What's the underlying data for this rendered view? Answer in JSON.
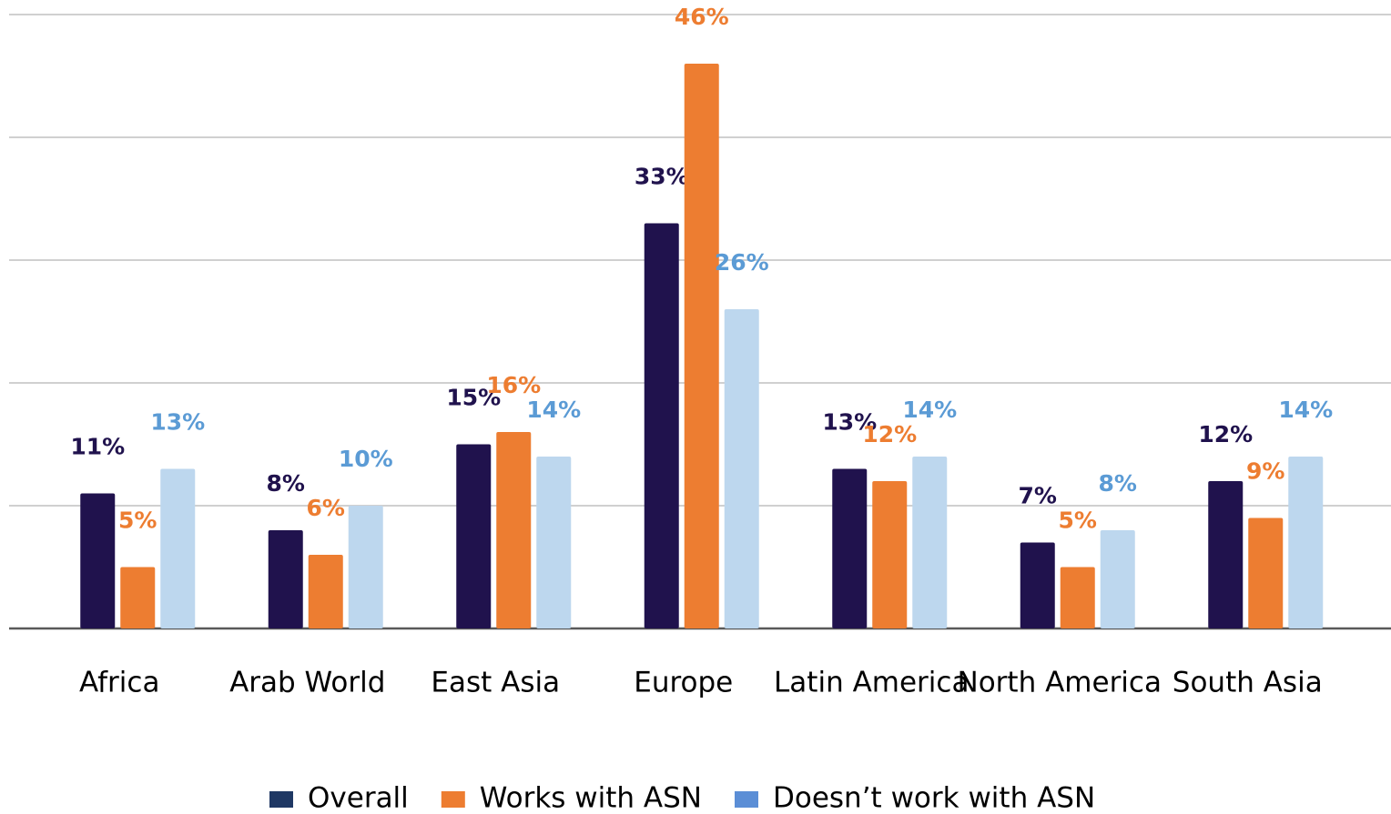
{
  "chart_data": {
    "type": "bar",
    "categories": [
      "Africa",
      "Arab World",
      "East Asia",
      "Europe",
      "Latin America",
      "North America",
      "South Asia"
    ],
    "series": [
      {
        "name": "Overall",
        "color": "#20124d",
        "values": [
          11,
          8,
          15,
          33,
          13,
          7,
          12
        ],
        "value_labels": [
          "11%",
          "8%",
          "15%",
          "33%",
          "13%",
          "7%",
          "12%"
        ]
      },
      {
        "name": "Works with ASN",
        "color": "#ed7d31",
        "values": [
          5,
          6,
          16,
          46,
          12,
          5,
          9
        ],
        "value_labels": [
          "5%",
          "6%",
          "16%",
          "46%",
          "12%",
          "5%",
          "9%"
        ]
      },
      {
        "name": "Doesn’t work with ASN",
        "color": "#bdd7ee",
        "values": [
          13,
          10,
          14,
          26,
          14,
          8,
          14
        ],
        "value_labels": [
          "13%",
          "10%",
          "14%",
          "26%",
          "14%",
          "8%",
          "14%"
        ]
      }
    ],
    "ylim": [
      0,
      50
    ],
    "yticks": [
      0,
      10,
      20,
      30,
      40,
      50
    ],
    "grid": true,
    "legend": "bottom"
  }
}
